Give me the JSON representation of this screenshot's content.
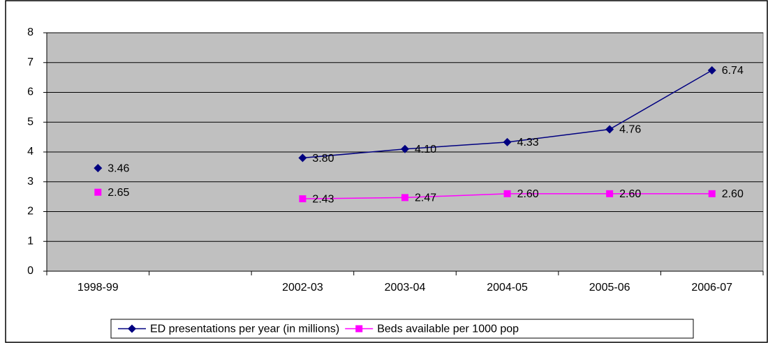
{
  "chart_data": {
    "type": "line",
    "categories": [
      "1998-99",
      null,
      "2002-03",
      "2003-04",
      "2004-05",
      "2005-06",
      "2006-07"
    ],
    "series": [
      {
        "name": "ED presentations per year (in millions)",
        "color": "#000080",
        "marker": "diamond",
        "values": [
          3.46,
          null,
          3.8,
          4.1,
          4.33,
          4.76,
          6.74
        ],
        "value_labels": [
          "3.46",
          null,
          "3.80",
          "4.10",
          "4.33",
          "4.76",
          "6.74"
        ]
      },
      {
        "name": "Beds available per 1000 pop",
        "color": "#ff00ff",
        "marker": "square",
        "values": [
          2.65,
          null,
          2.43,
          2.47,
          2.6,
          2.6,
          2.6
        ],
        "value_labels": [
          "2.65",
          null,
          "2.43",
          "2.47",
          "2.60",
          "2.60",
          "2.60"
        ]
      }
    ],
    "ylim": [
      0,
      8
    ],
    "yticks": [
      0,
      1,
      2,
      3,
      4,
      5,
      6,
      7,
      8
    ],
    "grid": true,
    "legend": "bottom"
  }
}
